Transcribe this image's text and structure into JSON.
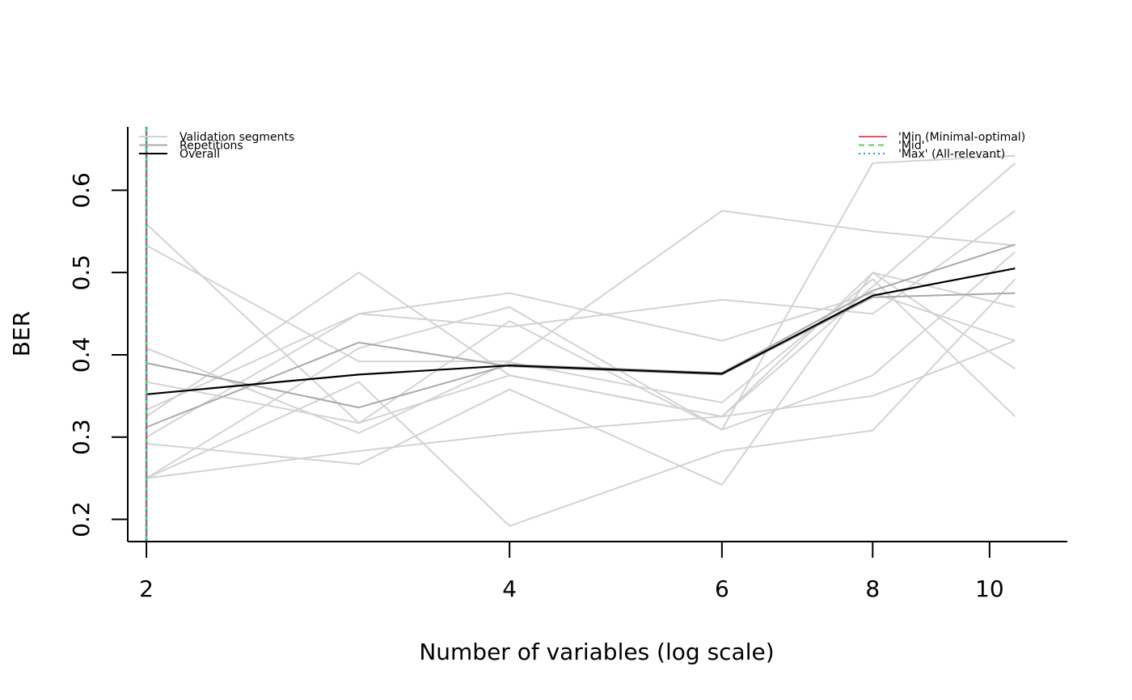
{
  "chart_data": {
    "type": "line",
    "title": "",
    "xlabel": "Number of variables (log scale)",
    "ylabel": "BER",
    "x_scale": "log",
    "x": [
      2,
      3,
      4,
      6,
      8,
      10.5
    ],
    "xticks": [
      2,
      4,
      6,
      8,
      10
    ],
    "xtick_labels": [
      "2",
      "4",
      "6",
      "8",
      "10"
    ],
    "yticks": [
      0.2,
      0.3,
      0.4,
      0.5,
      0.6
    ],
    "ytick_labels": [
      "0.2",
      "0.3",
      "0.4",
      "0.5",
      "0.6"
    ],
    "xlim": [
      1.93,
      11.6
    ],
    "ylim": [
      0.173,
      0.677
    ],
    "vertical_lines": [
      {
        "name": "'Min (Minimal-optimal)",
        "x": 2,
        "color": "#DF536B",
        "dash": "solid"
      },
      {
        "name": "'Mid'",
        "x": 2,
        "color": "#61D04F",
        "dash": "dashed"
      },
      {
        "name": "'Max' (All-relevant)",
        "x": 2,
        "color": "#2297E6",
        "dash": "dotted"
      }
    ],
    "series": [
      {
        "name": "Validation segments",
        "group": "validation",
        "color": "#D3D3D3",
        "values": [
          0.559,
          0.317,
          0.441,
          0.309,
          0.633,
          0.642
        ]
      },
      {
        "name": "Validation segments",
        "group": "validation",
        "color": "#D3D3D3",
        "values": [
          0.533,
          0.392,
          0.392,
          0.575,
          0.55,
          0.533
        ]
      },
      {
        "name": "Validation segments",
        "group": "validation",
        "color": "#D3D3D3",
        "values": [
          0.408,
          0.305,
          0.391,
          0.342,
          0.492,
          0.325
        ]
      },
      {
        "name": "Validation segments",
        "group": "validation",
        "color": "#D3D3D3",
        "values": [
          0.367,
          0.317,
          0.375,
          0.325,
          0.483,
          0.633
        ]
      },
      {
        "name": "Validation segments",
        "group": "validation",
        "color": "#D3D3D3",
        "values": [
          0.333,
          0.45,
          0.434,
          0.467,
          0.45,
          0.575
        ]
      },
      {
        "name": "Validation segments",
        "group": "validation",
        "color": "#D3D3D3",
        "values": [
          0.325,
          0.5,
          0.375,
          0.325,
          0.5,
          0.383
        ]
      },
      {
        "name": "Validation segments",
        "group": "validation",
        "color": "#D3D3D3",
        "values": [
          0.3,
          0.45,
          0.475,
          0.417,
          0.475,
          0.417
        ]
      },
      {
        "name": "Validation segments",
        "group": "validation",
        "color": "#D3D3D3",
        "values": [
          0.292,
          0.267,
          0.358,
          0.242,
          0.5,
          0.458
        ]
      },
      {
        "name": "Validation segments",
        "group": "validation",
        "color": "#D3D3D3",
        "values": [
          0.25,
          0.283,
          0.304,
          0.325,
          0.35,
          0.417
        ]
      },
      {
        "name": "Validation segments",
        "group": "validation",
        "color": "#D3D3D3",
        "values": [
          0.25,
          0.367,
          0.192,
          0.283,
          0.308,
          0.492
        ]
      },
      {
        "name": "Validation segments",
        "group": "validation",
        "color": "#D3D3D3",
        "values": [
          0.25,
          0.408,
          0.458,
          0.309,
          0.375,
          0.525
        ]
      },
      {
        "name": "Repetitions",
        "group": "repetition",
        "color": "#A9A9A9",
        "values": [
          0.39,
          0.336,
          0.388,
          0.378,
          0.478,
          0.534
        ]
      },
      {
        "name": "Repetitions",
        "group": "repetition",
        "color": "#A9A9A9",
        "values": [
          0.312,
          0.415,
          0.386,
          0.376,
          0.47,
          0.475
        ]
      },
      {
        "name": "Overall",
        "group": "overall",
        "color": "#000000",
        "values": [
          0.352,
          0.376,
          0.387,
          0.377,
          0.472,
          0.505
        ]
      }
    ],
    "legend_left": {
      "placement": "top-left",
      "entries": [
        {
          "label": "Validation segments",
          "color": "#D3D3D3",
          "dash": "solid"
        },
        {
          "label": "Repetitions",
          "color": "#A9A9A9",
          "dash": "solid"
        },
        {
          "label": "Overall",
          "color": "#000000",
          "dash": "solid"
        }
      ]
    },
    "legend_right": {
      "placement": "top-right",
      "entries": [
        {
          "label": "'Min (Minimal-optimal)",
          "color": "#DF536B",
          "dash": "solid"
        },
        {
          "label": "'Mid'",
          "color": "#61D04F",
          "dash": "dashed"
        },
        {
          "label": "'Max' (All-relevant)",
          "color": "#2297E6",
          "dash": "dotted"
        }
      ]
    }
  }
}
